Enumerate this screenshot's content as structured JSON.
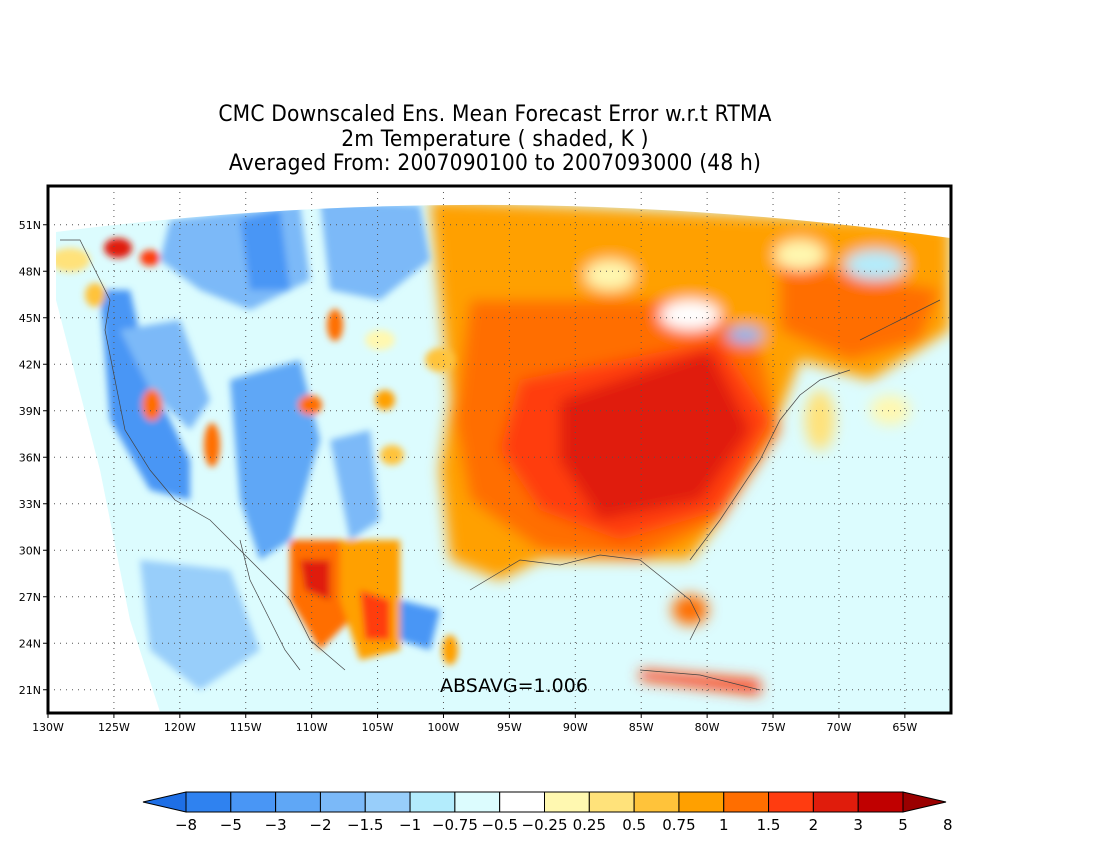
{
  "title": {
    "line1": "CMC Downscaled Ens. Mean Forecast Error w.r.t RTMA",
    "line2": "2m Temperature ( shaded, K )",
    "line3": "Averaged From: 2007090100 to 2007093000 (48 h)"
  },
  "map": {
    "lat_labels": [
      "51N",
      "48N",
      "45N",
      "42N",
      "39N",
      "36N",
      "33N",
      "30N",
      "27N",
      "24N",
      "21N"
    ],
    "lon_labels": [
      "130W",
      "125W",
      "120W",
      "115W",
      "110W",
      "105W",
      "100W",
      "95W",
      "90W",
      "85W",
      "80W",
      "75W",
      "70W",
      "65W"
    ],
    "lat_range": [
      19.5,
      53.5
    ],
    "lon_range": [
      -130,
      -61.5
    ],
    "absavg": "ABSAVG=1.006"
  },
  "colorbar": {
    "colors": [
      "#1e6fe6",
      "#2f82f0",
      "#4996f5",
      "#5fa7f6",
      "#7bb9f8",
      "#98cefa",
      "#b3ecfc",
      "#dcfcfe",
      "#ffffff",
      "#fff8b0",
      "#ffe27a",
      "#ffc33a",
      "#ffa000",
      "#ff6e00",
      "#ff3c10",
      "#e01c0c",
      "#c00000",
      "#9a0000"
    ],
    "labels": [
      "-8",
      "-5",
      "-3",
      "-2",
      "-1.5",
      "-1",
      "-0.75",
      "-0.5",
      "-0.25",
      "0.25",
      "0.5",
      "0.75",
      "1",
      "1.5",
      "2",
      "3",
      "5",
      "8"
    ]
  }
}
